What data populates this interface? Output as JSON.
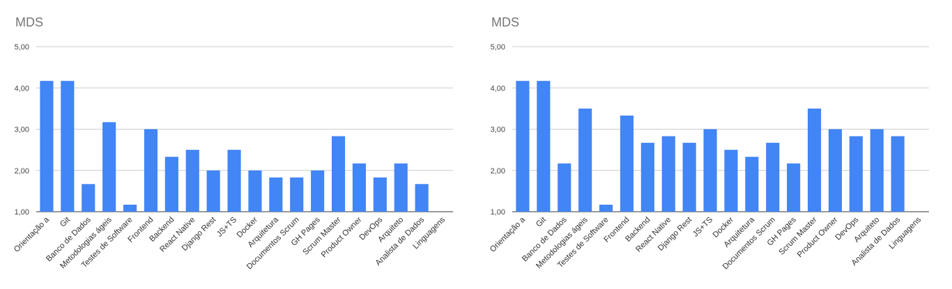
{
  "chart_data": [
    {
      "type": "bar",
      "title": "MDS",
      "categories": [
        "Orientação a",
        "Git",
        "Banco de Dados",
        "Metodologias ágeis",
        "Testes de Software",
        "Frontend",
        "Backend",
        "React Native",
        "Django Rest",
        "JS+TS",
        "Docker",
        "Arquitetura",
        "Documentos Scrum",
        "GH Pages",
        "Scrum Master",
        "Product Owner",
        "DevOps",
        "Arquiteto",
        "Analista de Dados",
        "Linguagens"
      ],
      "values": [
        4.17,
        4.17,
        1.67,
        3.17,
        1.17,
        3.0,
        2.33,
        2.5,
        2.0,
        2.5,
        2.0,
        1.83,
        1.83,
        2.0,
        2.83,
        2.17,
        1.83,
        2.17,
        1.67,
        null
      ],
      "ylim": [
        1,
        5
      ],
      "yticks": [
        "1,00",
        "2,00",
        "3,00",
        "4,00",
        "5,00"
      ],
      "color": "#4285f4",
      "grid": true
    },
    {
      "type": "bar",
      "title": "MDS",
      "categories": [
        "Orientação a",
        "Git",
        "Banco de Dados",
        "Metodologias ágeis",
        "Testes de Software",
        "Frontend",
        "Backend",
        "React Native",
        "Django Rest",
        "JS+TS",
        "Docker",
        "Arquitetura",
        "Documentos Scrum",
        "GH Pages",
        "Scrum Master",
        "Product Owner",
        "DevOps",
        "Arquiteto",
        "Analista de Dados",
        "Linguagens"
      ],
      "values": [
        4.17,
        4.17,
        2.17,
        3.5,
        1.17,
        3.33,
        2.67,
        2.83,
        2.67,
        3.0,
        2.5,
        2.33,
        2.67,
        2.17,
        3.5,
        3.0,
        2.83,
        3.0,
        2.83,
        null
      ],
      "ylim": [
        1,
        5
      ],
      "yticks": [
        "1,00",
        "2,00",
        "3,00",
        "4,00",
        "5,00"
      ],
      "color": "#4285f4",
      "grid": true
    }
  ]
}
